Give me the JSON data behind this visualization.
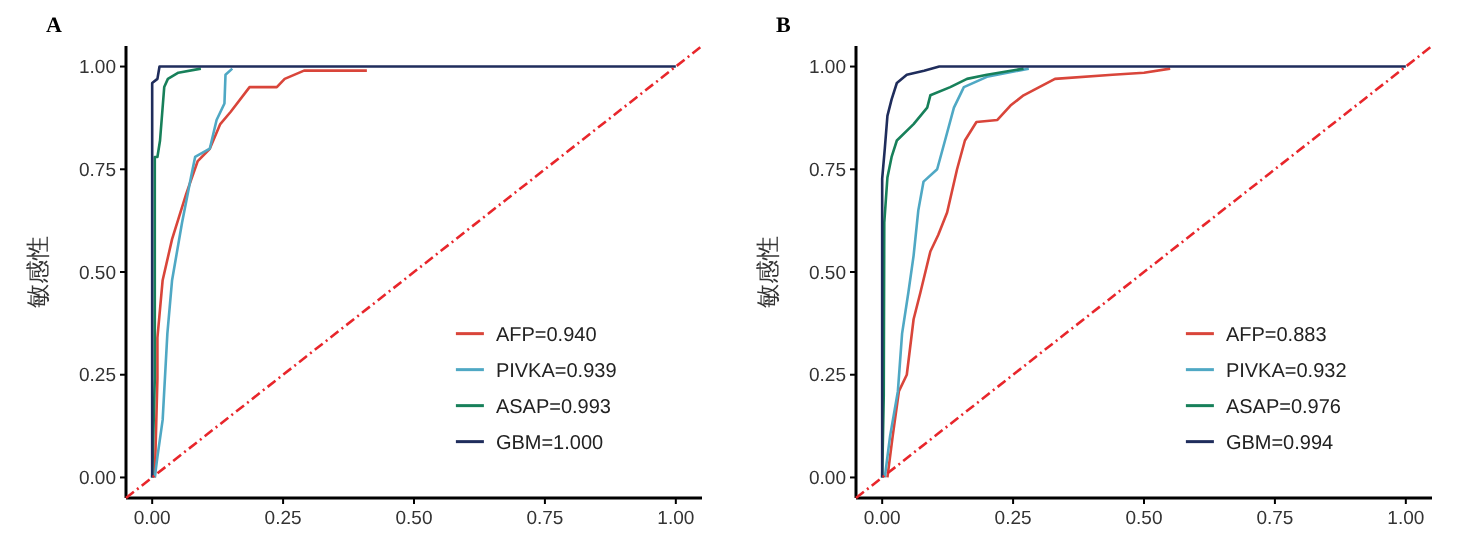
{
  "chart_data": [
    {
      "type": "line",
      "title": "A",
      "ylabel": "敏感性",
      "xlim": [
        -0.05,
        1.05
      ],
      "ylim": [
        -0.05,
        1.05
      ],
      "xticks": [
        {
          "value": 0,
          "label": "0.00"
        },
        {
          "value": 0.25,
          "label": "0.25"
        },
        {
          "value": 0.5,
          "label": "0.50"
        },
        {
          "value": 0.75,
          "label": "0.75"
        },
        {
          "value": 1,
          "label": "1.00"
        }
      ],
      "yticks": [
        {
          "value": 0,
          "label": "0.00"
        },
        {
          "value": 0.25,
          "label": "0.25"
        },
        {
          "value": 0.5,
          "label": "0.50"
        },
        {
          "value": 0.75,
          "label": "0.75"
        },
        {
          "value": 1,
          "label": "1.00"
        }
      ],
      "grid": false,
      "legend": "bottom right",
      "series": [
        {
          "name": "AFP=0.940",
          "color": "#d9453a",
          "x": [
            0.005,
            0.01,
            0.01,
            0.02,
            0.038,
            0.065,
            0.087,
            0.11,
            0.13,
            0.15,
            0.186,
            0.238,
            0.253,
            0.29,
            0.41
          ],
          "values": [
            0,
            0.24,
            0.34,
            0.48,
            0.58,
            0.69,
            0.77,
            0.8,
            0.86,
            0.89,
            0.95,
            0.95,
            0.97,
            0.99,
            0.99
          ]
        },
        {
          "name": "PIVKA=0.939",
          "color": "#4fa8c4",
          "x": [
            0.005,
            0.01,
            0.02,
            0.029,
            0.038,
            0.057,
            0.074,
            0.082,
            0.11,
            0.123,
            0.138,
            0.14,
            0.153
          ],
          "values": [
            0,
            0.05,
            0.14,
            0.35,
            0.48,
            0.62,
            0.73,
            0.78,
            0.8,
            0.87,
            0.91,
            0.98,
            0.995
          ]
        },
        {
          "name": "ASAP=0.993",
          "color": "#17805a",
          "x": [
            0,
            0.005,
            0.005,
            0.01,
            0.015,
            0.023,
            0.03,
            0.05,
            0.093
          ],
          "values": [
            0,
            0.24,
            0.78,
            0.78,
            0.82,
            0.95,
            0.97,
            0.985,
            0.995
          ]
        },
        {
          "name": "GBM=1.000",
          "color": "#1f2d5c",
          "x": [
            0,
            0,
            0.01,
            0.014,
            1
          ],
          "values": [
            0,
            0.96,
            0.97,
            1,
            1
          ]
        },
        {
          "color": "#e8262b",
          "line_style": "dashed",
          "x": [
            -0.05,
            1.05
          ],
          "values": [
            -0.05,
            1.05
          ]
        }
      ]
    },
    {
      "type": "line",
      "title": "B",
      "ylabel": "敏感性",
      "xlim": [
        -0.05,
        1.05
      ],
      "ylim": [
        -0.05,
        1.05
      ],
      "xticks": [
        {
          "value": 0,
          "label": "0.00"
        },
        {
          "value": 0.25,
          "label": "0.25"
        },
        {
          "value": 0.5,
          "label": "0.50"
        },
        {
          "value": 0.75,
          "label": "0.75"
        },
        {
          "value": 1,
          "label": "1.00"
        }
      ],
      "yticks": [
        {
          "value": 0,
          "label": "0.00"
        },
        {
          "value": 0.25,
          "label": "0.25"
        },
        {
          "value": 0.5,
          "label": "0.50"
        },
        {
          "value": 0.75,
          "label": "0.75"
        },
        {
          "value": 1,
          "label": "1.00"
        }
      ],
      "grid": false,
      "legend": "bottom right",
      "series": [
        {
          "name": "AFP=0.883",
          "color": "#d9453a",
          "x": [
            0.01,
            0.02,
            0.032,
            0.047,
            0.06,
            0.073,
            0.092,
            0.107,
            0.124,
            0.143,
            0.158,
            0.18,
            0.22,
            0.245,
            0.27,
            0.3,
            0.33,
            0.44,
            0.5,
            0.55
          ],
          "values": [
            0,
            0.1,
            0.21,
            0.25,
            0.385,
            0.45,
            0.55,
            0.59,
            0.645,
            0.75,
            0.82,
            0.865,
            0.87,
            0.905,
            0.93,
            0.95,
            0.97,
            0.98,
            0.985,
            0.995
          ]
        },
        {
          "name": "PIVKA=0.932",
          "color": "#4fa8c4",
          "x": [
            0.005,
            0.015,
            0.03,
            0.038,
            0.05,
            0.06,
            0.069,
            0.079,
            0.105,
            0.12,
            0.137,
            0.156,
            0.2,
            0.26,
            0.28
          ],
          "values": [
            0,
            0.1,
            0.21,
            0.35,
            0.45,
            0.54,
            0.65,
            0.72,
            0.75,
            0.82,
            0.9,
            0.95,
            0.975,
            0.99,
            0.995
          ]
        },
        {
          "name": "ASAP=0.976",
          "color": "#17805a",
          "x": [
            0,
            0.003,
            0.004,
            0.01,
            0.018,
            0.028,
            0.06,
            0.086,
            0.092,
            0.13,
            0.162,
            0.2,
            0.27
          ],
          "values": [
            0,
            0.2,
            0.62,
            0.73,
            0.78,
            0.82,
            0.86,
            0.9,
            0.93,
            0.95,
            0.97,
            0.98,
            0.995
          ]
        },
        {
          "name": "GBM=0.994",
          "color": "#1f2d5c",
          "x": [
            0,
            0,
            0.005,
            0.01,
            0.018,
            0.028,
            0.047,
            0.08,
            0.109,
            1
          ],
          "values": [
            0,
            0.727,
            0.8,
            0.88,
            0.92,
            0.96,
            0.98,
            0.99,
            1,
            1
          ]
        },
        {
          "color": "#e8262b",
          "line_style": "dashed",
          "x": [
            -0.05,
            1.05
          ],
          "values": [
            -0.05,
            1.05
          ]
        }
      ]
    }
  ]
}
